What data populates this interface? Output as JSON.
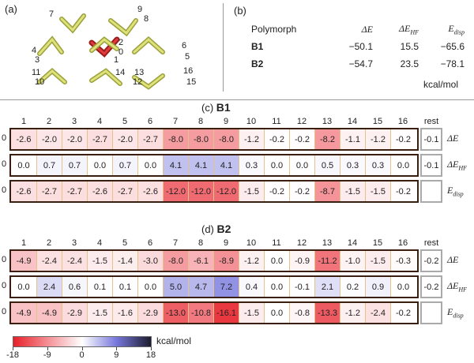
{
  "panel_a": {
    "label": "(a)",
    "molecule_numbers": [
      "7",
      "9",
      "8",
      "4",
      "3",
      "2",
      "0",
      "1",
      "6",
      "5",
      "11",
      "10",
      "14",
      "13",
      "12",
      "16",
      "15"
    ]
  },
  "panel_b": {
    "label": "(b)",
    "headers": {
      "polymorph": "Polymorph",
      "de": "ΔE",
      "dehf": "ΔE",
      "dehf_sub": "HF",
      "edisp": "E",
      "edisp_sub": "disp"
    },
    "rows": [
      {
        "name": "B1",
        "de": "−50.1",
        "dehf": "15.5",
        "edisp": "−65.6"
      },
      {
        "name": "B2",
        "de": "−54.7",
        "dehf": "23.5",
        "edisp": "−78.1"
      }
    ],
    "unit": "kcal/mol"
  },
  "sections": [
    {
      "prefix": "(c)",
      "name": "B1",
      "rows": [
        {
          "label": "ΔE",
          "sub": "",
          "values": [
            "-2.6",
            "-2.0",
            "-2.0",
            "-2.7",
            "-2.0",
            "-2.7",
            "-8.0",
            "-8.0",
            "-8.0",
            "-1.2",
            "-0.2",
            "-0.2",
            "-8.2",
            "-1.1",
            "-1.2",
            "-0.2"
          ],
          "rest": "-0.1"
        },
        {
          "label": "ΔE",
          "sub": "HF",
          "values": [
            "0.0",
            "0.7",
            "0.7",
            "0.0",
            "0.7",
            "0.0",
            "4.1",
            "4.1",
            "4.1",
            "0.3",
            "0.0",
            "0.0",
            "0.5",
            "0.3",
            "0.3",
            "0.0"
          ],
          "rest": "-0.1"
        },
        {
          "label": "E",
          "sub": "disp",
          "values": [
            "-2.6",
            "-2.7",
            "-2.7",
            "-2.6",
            "-2.7",
            "-2.6",
            "-12.0",
            "-12.0",
            "-12.0",
            "-1.5",
            "-0.2",
            "-0.2",
            "-8.7",
            "-1.5",
            "-1.5",
            "-0.2"
          ],
          "rest": ""
        }
      ]
    },
    {
      "prefix": "(d)",
      "name": "B2",
      "rows": [
        {
          "label": "ΔE",
          "sub": "",
          "values": [
            "-4.9",
            "-2.4",
            "-2.4",
            "-1.5",
            "-1.4",
            "-3.0",
            "-8.0",
            "-6.1",
            "-8.9",
            "-1.2",
            "0.0",
            "-0.9",
            "-11.2",
            "-1.0",
            "-1.5",
            "-0.3"
          ],
          "rest": "-0.2"
        },
        {
          "label": "ΔE",
          "sub": "HF",
          "values": [
            "0.0",
            "2.4",
            "0.6",
            "0.1",
            "0.1",
            "0.0",
            "5.0",
            "4.7",
            "7.2",
            "0.4",
            "0.0",
            "-0.1",
            "2.1",
            "0.2",
            "0.9",
            "0.0"
          ],
          "rest": "-0.2"
        },
        {
          "label": "E",
          "sub": "disp",
          "values": [
            "-4.9",
            "-4.9",
            "-2.9",
            "-1.5",
            "-1.6",
            "-2.9",
            "-13.0",
            "-10.8",
            "-16.1",
            "-1.5",
            "0.0",
            "-0.8",
            "-13.3",
            "-1.2",
            "-2.4",
            "-0.2"
          ],
          "rest": ""
        }
      ]
    }
  ],
  "columns": [
    "1",
    "2",
    "3",
    "4",
    "5",
    "6",
    "7",
    "8",
    "9",
    "10",
    "11",
    "12",
    "13",
    "14",
    "15",
    "16"
  ],
  "rest_label": "rest",
  "row_start": "0",
  "colorbar": {
    "ticks": [
      "-18",
      "-9",
      "0",
      "9",
      "18"
    ],
    "unit": "kcal/mol",
    "min": -18,
    "max": 18
  },
  "colors": {
    "negative": "#e8202a",
    "positive": "#1c1c2e",
    "mid_positive": "#7777dd",
    "frame": "#3a1e10",
    "rest_frame": "#aaaaaa"
  }
}
